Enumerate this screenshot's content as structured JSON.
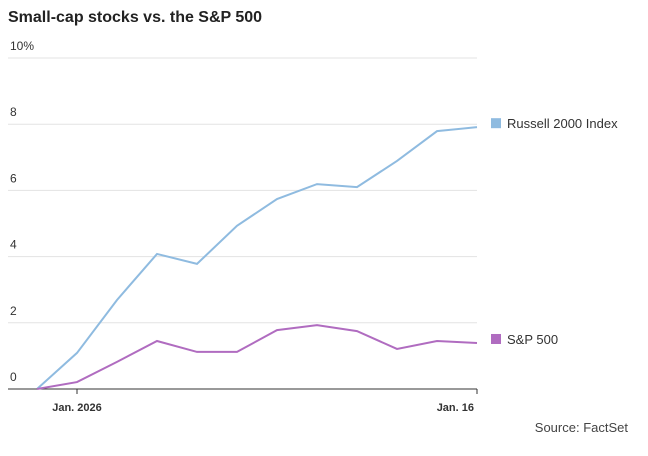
{
  "chart_data": {
    "type": "line",
    "title": "Small-cap stocks vs. the S&P 500",
    "categories": [
      null,
      "Jan. 2026",
      null,
      null,
      null,
      null,
      null,
      null,
      null,
      null,
      null,
      "Jan. 16"
    ],
    "series": [
      {
        "name": "Russell 2000 Index",
        "color": "#8fbbe0",
        "values": [
          0,
          1.09,
          2.69,
          4.08,
          3.78,
          4.93,
          5.74,
          6.19,
          6.1,
          6.89,
          7.79,
          7.91
        ]
      },
      {
        "name": "S&P 500",
        "color": "#b06cc0",
        "values": [
          0,
          0.21,
          0.82,
          1.45,
          1.12,
          1.12,
          1.78,
          1.93,
          1.75,
          1.21,
          1.45,
          1.39
        ]
      }
    ],
    "ylim": [
      0,
      10
    ],
    "yticks": [
      0,
      2,
      4,
      6,
      8,
      {
        "value": 10,
        "label": "10%"
      }
    ],
    "grid": true,
    "source": "Source: FactSet"
  }
}
